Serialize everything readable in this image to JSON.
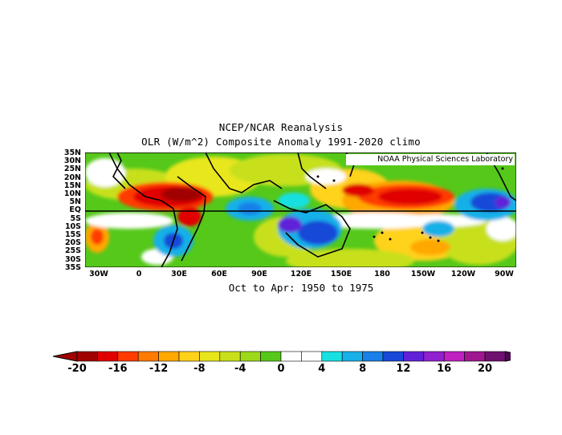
{
  "title": {
    "line1": "NCEP/NCAR Reanalysis",
    "line2": "OLR (W/m^2) Composite Anomaly 1991-2020 climo"
  },
  "period": "Oct to Apr: 1950 to 1975",
  "credit": "NOAA Physical Sciences Laboratory",
  "lat_labels": [
    "35N",
    "30N",
    "25N",
    "20N",
    "15N",
    "10N",
    "5N",
    "EQ",
    "5S",
    "10S",
    "15S",
    "20S",
    "25S",
    "30S",
    "35S"
  ],
  "lon_labels": [
    "30W",
    "0",
    "30E",
    "60E",
    "90E",
    "120E",
    "150E",
    "180",
    "150W",
    "120W",
    "90W"
  ],
  "colorbar": {
    "labels": [
      "-20",
      "-16",
      "-12",
      "-8",
      "-4",
      "0",
      "4",
      "8",
      "12",
      "16",
      "20"
    ],
    "colors": [
      "#a00000",
      "#e00000",
      "#ff3b00",
      "#ff7a00",
      "#ffa800",
      "#ffd21a",
      "#e8e61a",
      "#c8e01a",
      "#9ed81a",
      "#55c81a",
      "#ffffff",
      "#ffffff",
      "#18e0e0",
      "#18b0e8",
      "#1880e8",
      "#1848d8",
      "#6020d8",
      "#9020d0",
      "#c020c0",
      "#a01890",
      "#701070"
    ],
    "left_arrow": "#a00000",
    "right_arrow": "#4a0a50"
  },
  "map_colors": {
    "positive_strong": "#1848d8",
    "positive": "#18b0e8",
    "neutral": "#ffffff",
    "background": "#55c81a",
    "negative_weak": "#c8e01a",
    "negative": "#ffa800",
    "negative_strong": "#e00000"
  }
}
